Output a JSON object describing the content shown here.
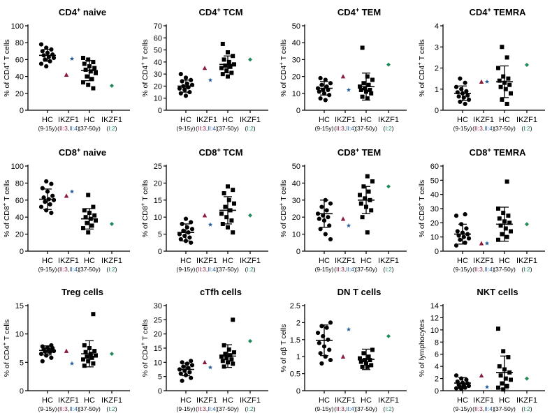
{
  "colors": {
    "hc": "#000000",
    "patient_II3": "#8b1a3b",
    "patient_II4": "#1f5a9e",
    "patient_I2": "#1f8a5a",
    "axis": "#000000"
  },
  "category_labels": {
    "hc": "HC",
    "ikzf1": "IKZF1",
    "hc_young_sub": "(9-15y)",
    "hc_adult_sub": "(37-50y)",
    "sub_II3": "II:3",
    "sub_sep": ",",
    "sub_II4": "II:4",
    "sub_I2": "I:2",
    "open_paren": "(",
    "close_paren": ")"
  },
  "chart_data": [
    {
      "type": "scatter",
      "title": "CD4",
      "sup": "+",
      "title_rest": " naive",
      "ylabel": "% of CD4",
      "ylabel_sup": "+",
      "ylabel_rest": " T cells",
      "ylim": [
        0,
        100
      ],
      "yticks": [
        0,
        20,
        40,
        60,
        80,
        100
      ],
      "hc_young": {
        "values": [
          78,
          74,
          72,
          70,
          68,
          66,
          65,
          63,
          62,
          60,
          58,
          55,
          52
        ],
        "mean": 65,
        "sd": 7
      },
      "II3": 42,
      "II4": 61,
      "hc_adult": {
        "values": [
          62,
          60,
          57,
          55,
          52,
          50,
          48,
          46,
          44,
          40,
          37,
          33,
          30,
          26
        ],
        "mean": 47,
        "sd": 12
      },
      "I2": 29
    },
    {
      "type": "scatter",
      "title": "CD4",
      "sup": "+",
      "title_rest": " TCM",
      "ylabel": "% of CD4",
      "ylabel_sup": "+",
      "ylabel_rest": " T cells",
      "ylim": [
        0,
        70
      ],
      "yticks": [
        0,
        10,
        20,
        30,
        40,
        50,
        60,
        70
      ],
      "hc_young": {
        "values": [
          30,
          27,
          25,
          24,
          22,
          21,
          20,
          19,
          18,
          17,
          15,
          14,
          12
        ],
        "mean": 20,
        "sd": 5
      },
      "II3": 35,
      "II4": 25,
      "hc_adult": {
        "values": [
          55,
          48,
          45,
          42,
          40,
          38,
          37,
          36,
          35,
          33,
          31,
          30,
          28
        ],
        "mean": 38,
        "sd": 7
      },
      "I2": 42
    },
    {
      "type": "scatter",
      "title": "CD4",
      "sup": "+",
      "title_rest": " TEM",
      "ylabel": "% of CD4",
      "ylabel_sup": "+",
      "ylabel_rest": " T cells",
      "ylim": [
        0,
        50
      ],
      "yticks": [
        0,
        10,
        20,
        30,
        40,
        50
      ],
      "hc_young": {
        "values": [
          19,
          18,
          16,
          15,
          14,
          13,
          12,
          12,
          11,
          10,
          9,
          7,
          6
        ],
        "mean": 13,
        "sd": 4
      },
      "II3": 20,
      "II4": 12,
      "hc_adult": {
        "values": [
          37,
          20,
          18,
          16,
          15,
          14,
          13,
          12,
          12,
          11,
          10,
          8,
          7
        ],
        "mean": 14,
        "sd": 8
      },
      "I2": 27
    },
    {
      "type": "scatter",
      "title": "CD4",
      "sup": "+",
      "title_rest": " TEMRA",
      "ylabel": "% of CD4",
      "ylabel_sup": "+",
      "ylabel_rest": " T cells",
      "ylim": [
        0,
        4
      ],
      "yticks": [
        0,
        1,
        2,
        3,
        4
      ],
      "hc_young": {
        "values": [
          1.5,
          1.3,
          1.1,
          1.0,
          0.9,
          0.85,
          0.8,
          0.7,
          0.65,
          0.6,
          0.5,
          0.4,
          0.3
        ],
        "mean": 0.8,
        "sd": 0.35
      },
      "II3": 1.35,
      "II4": 1.35,
      "hc_adult": {
        "values": [
          3.0,
          2.5,
          2.0,
          1.6,
          1.5,
          1.4,
          1.3,
          1.2,
          1.1,
          1.0,
          0.8,
          0.5,
          0.3
        ],
        "mean": 1.35,
        "sd": 0.75
      },
      "I2": 2.15
    },
    {
      "type": "scatter",
      "title": "CD8",
      "sup": "+",
      "title_rest": " naive",
      "ylabel": "% of CD8",
      "ylabel_sup": "+",
      "ylabel_rest": " T cells",
      "ylim": [
        0,
        100
      ],
      "yticks": [
        0,
        20,
        40,
        60,
        80,
        100
      ],
      "hc_young": {
        "values": [
          82,
          79,
          74,
          70,
          65,
          63,
          61,
          60,
          58,
          55,
          52,
          48,
          45
        ],
        "mean": 61,
        "sd": 12
      },
      "II3": 65,
      "II4": 70,
      "hc_adult": {
        "values": [
          66,
          52,
          48,
          45,
          42,
          40,
          38,
          36,
          33,
          30,
          27,
          22
        ],
        "mean": 38,
        "sd": 12
      },
      "I2": 32
    },
    {
      "type": "scatter",
      "title": "CD8",
      "sup": "+",
      "title_rest": " TCM",
      "ylabel": "% of CD8",
      "ylabel_sup": "+",
      "ylabel_rest": " T cells",
      "ylim": [
        0,
        25
      ],
      "yticks": [
        0,
        5,
        10,
        15,
        20,
        25
      ],
      "hc_young": {
        "values": [
          9.5,
          8.5,
          8.0,
          7.0,
          6.5,
          6.0,
          5.5,
          5.0,
          4.5,
          4.0,
          3.5,
          3.0,
          2.5
        ],
        "mean": 5.5,
        "sd": 2.5
      },
      "II3": 10.5,
      "II4": 7.8,
      "hc_adult": {
        "values": [
          19,
          18,
          17,
          15,
          14,
          13,
          12,
          11,
          10,
          9,
          8,
          7,
          5.5
        ],
        "mean": 12,
        "sd": 4
      },
      "I2": 10.5
    },
    {
      "type": "scatter",
      "title": "CD8",
      "sup": "+",
      "title_rest": " TEM",
      "ylabel": "% of CD8",
      "ylabel_sup": "+",
      "ylabel_rest": " T cells",
      "ylim": [
        0,
        50
      ],
      "yticks": [
        0,
        10,
        20,
        30,
        40,
        50
      ],
      "hc_young": {
        "values": [
          30,
          28,
          26,
          24,
          22,
          21,
          20,
          19,
          18,
          15,
          13,
          10,
          7
        ],
        "mean": 22,
        "sd": 8
      },
      "II3": 19,
      "II4": 15,
      "hc_adult": {
        "values": [
          44,
          41,
          38,
          35,
          33,
          31,
          30,
          28,
          26,
          24,
          20,
          11
        ],
        "mean": 30,
        "sd": 8
      },
      "I2": 38
    },
    {
      "type": "scatter",
      "title": "CD8",
      "sup": "+",
      "title_rest": " TEMRA",
      "ylabel": "% of CD8",
      "ylabel_sup": "+",
      "ylabel_rest": " T cells",
      "ylim": [
        0,
        60
      ],
      "yticks": [
        0,
        10,
        20,
        30,
        40,
        50,
        60
      ],
      "hc_young": {
        "values": [
          26,
          25,
          19,
          16,
          14,
          13,
          12,
          11,
          10,
          9,
          8,
          6,
          4
        ],
        "mean": 12,
        "sd": 7
      },
      "II3": 5.5,
      "II4": 5.5,
      "hc_adult": {
        "values": [
          49,
          30,
          27,
          25,
          23,
          21,
          20,
          18,
          16,
          14,
          12,
          10,
          8
        ],
        "mean": 19,
        "sd": 12
      },
      "I2": 19
    },
    {
      "type": "scatter",
      "title": "Treg cells",
      "sup": "",
      "title_rest": "",
      "ylabel": "% of CD4",
      "ylabel_sup": "+",
      "ylabel_rest": " T cells",
      "ylim": [
        0,
        15
      ],
      "yticks": [
        0,
        5,
        10,
        15
      ],
      "hc_young": {
        "values": [
          8.0,
          7.8,
          7.6,
          7.5,
          7.3,
          7.2,
          7.0,
          6.9,
          6.8,
          6.5,
          6.2,
          5.8,
          5.2
        ],
        "mean": 7.1,
        "sd": 0.8
      },
      "II3": 7.0,
      "II4": 4.8,
      "hc_adult": {
        "values": [
          13.5,
          8.0,
          7.5,
          7.0,
          6.8,
          6.5,
          6.2,
          6.0,
          5.8,
          5.5,
          5.2,
          4.8,
          4.4
        ],
        "mean": 6.5,
        "sd": 2.3
      },
      "I2": 6.5
    },
    {
      "type": "scatter",
      "title": "cTfh cells",
      "sup": "",
      "title_rest": "",
      "ylabel": "% of CD4",
      "ylabel_sup": "+",
      "ylabel_rest": " T cells",
      "ylim": [
        0,
        30
      ],
      "yticks": [
        0,
        5,
        10,
        15,
        20,
        25,
        30
      ],
      "hc_young": {
        "values": [
          10.5,
          10.0,
          9.5,
          9.0,
          8.5,
          8.0,
          7.5,
          7.0,
          6.5,
          6.0,
          5.5,
          4.5,
          3.5
        ],
        "mean": 7.5,
        "sd": 2.2
      },
      "II3": 10.0,
      "II4": 8.2,
      "hc_adult": {
        "values": [
          25,
          16,
          14.5,
          13.5,
          13,
          12.5,
          12,
          11.5,
          11,
          10.5,
          10,
          9.5,
          8.5
        ],
        "mean": 12.2,
        "sd": 4
      },
      "I2": 17.5
    },
    {
      "type": "scatter",
      "title": "DN T cells",
      "sup": "",
      "title_rest": "",
      "ylabel": "% of αβ T cells",
      "ylabel_sup": "",
      "ylabel_rest": "",
      "ylim": [
        0,
        2.5
      ],
      "yticks": [
        0,
        0.5,
        1.0,
        1.5,
        2.0,
        2.5
      ],
      "ytick_labels": [
        "0",
        "0.5",
        "1",
        "1.5",
        "2",
        "2.5"
      ],
      "hc_young": {
        "values": [
          2.0,
          1.9,
          1.85,
          1.7,
          1.6,
          1.5,
          1.4,
          1.3,
          1.2,
          1.1,
          1.0,
          0.9,
          0.8
        ],
        "mean": 1.48,
        "sd": 0.45
      },
      "II3": 1.0,
      "II4": 1.8,
      "hc_adult": {
        "values": [
          1.2,
          1.1,
          1.0,
          0.95,
          0.9,
          0.9,
          0.85,
          0.8,
          0.75,
          0.7,
          0.7
        ],
        "mean": 0.92,
        "sd": 0.3
      },
      "I2": 1.6
    },
    {
      "type": "scatter",
      "title": "NKT cells",
      "sup": "",
      "title_rest": "",
      "ylabel": "% of lymphocytes",
      "ylabel_sup": "",
      "ylabel_rest": "",
      "ylim": [
        0,
        14
      ],
      "yticks": [
        0,
        2,
        4,
        6,
        8,
        10,
        12,
        14
      ],
      "hc_young": {
        "values": [
          2.5,
          2.0,
          1.8,
          1.5,
          1.3,
          1.2,
          1.0,
          0.9,
          0.8,
          0.6,
          0.5,
          0.4,
          0.3
        ],
        "mean": 1.25,
        "sd": 0.9
      },
      "II3": 2.5,
      "II4": 0.6,
      "hc_adult": {
        "values": [
          10.2,
          6.5,
          5.5,
          4.0,
          3.5,
          3.0,
          2.5,
          2.0,
          1.8,
          1.2,
          0.8,
          0.5,
          0.2
        ],
        "mean": 3.0,
        "sd": 2.7
      },
      "I2": 2.0
    }
  ]
}
